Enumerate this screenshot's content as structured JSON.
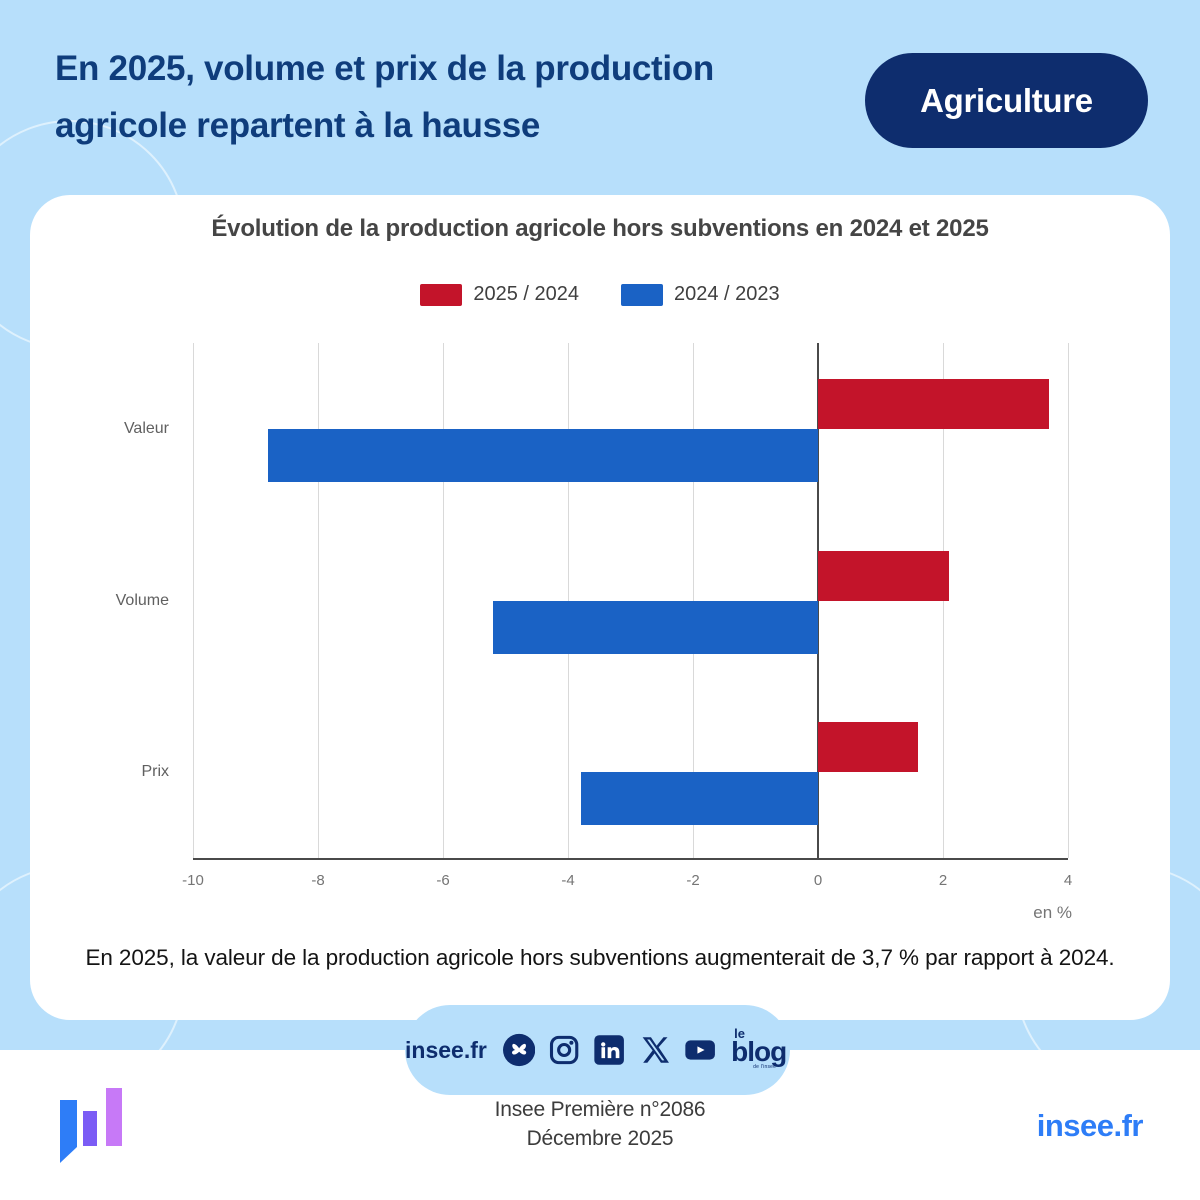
{
  "header": {
    "title_line1": "En 2025, volume et prix de la production",
    "title_line2": "agricole repartent à la hausse",
    "badge": "Agriculture"
  },
  "chart_data": {
    "type": "bar",
    "orientation": "horizontal",
    "title": "Évolution de la production agricole hors subventions en 2024 et 2025",
    "categories": [
      "Valeur",
      "Volume",
      "Prix"
    ],
    "series": [
      {
        "name": "2025 / 2024",
        "color": "#c3142a",
        "values": [
          3.7,
          2.1,
          1.6
        ]
      },
      {
        "name": "2024 / 2023",
        "color": "#1a62c5",
        "values": [
          -8.8,
          -5.2,
          -3.8
        ]
      }
    ],
    "xlabel": "en %",
    "xlim": [
      -10,
      4
    ],
    "xticks": [
      -10,
      -8,
      -6,
      -4,
      -2,
      0,
      2,
      4
    ],
    "grid": true,
    "legend_position": "top"
  },
  "caption": "En 2025, la valeur de la production agricole hors subventions augmenterait de 3,7 % par rapport à 2024.",
  "social": {
    "label": "insee.fr",
    "icons": [
      "bluesky",
      "instagram",
      "linkedin",
      "x",
      "youtube",
      "le-blog"
    ],
    "blog_le": "le",
    "blog_word": "blog",
    "blog_sub": "de l'insee"
  },
  "footer": {
    "publication": "Insee Première n°2086",
    "date": "Décembre 2025",
    "site": "insee.fr"
  },
  "colors": {
    "lightblue": "#b7dffb",
    "navy": "#0e2d6e",
    "title_navy": "#0f3d7c",
    "red": "#c3142a",
    "bar_blue": "#1a62c5",
    "bright_blue": "#2e7df7",
    "chart_text": "#454545"
  }
}
